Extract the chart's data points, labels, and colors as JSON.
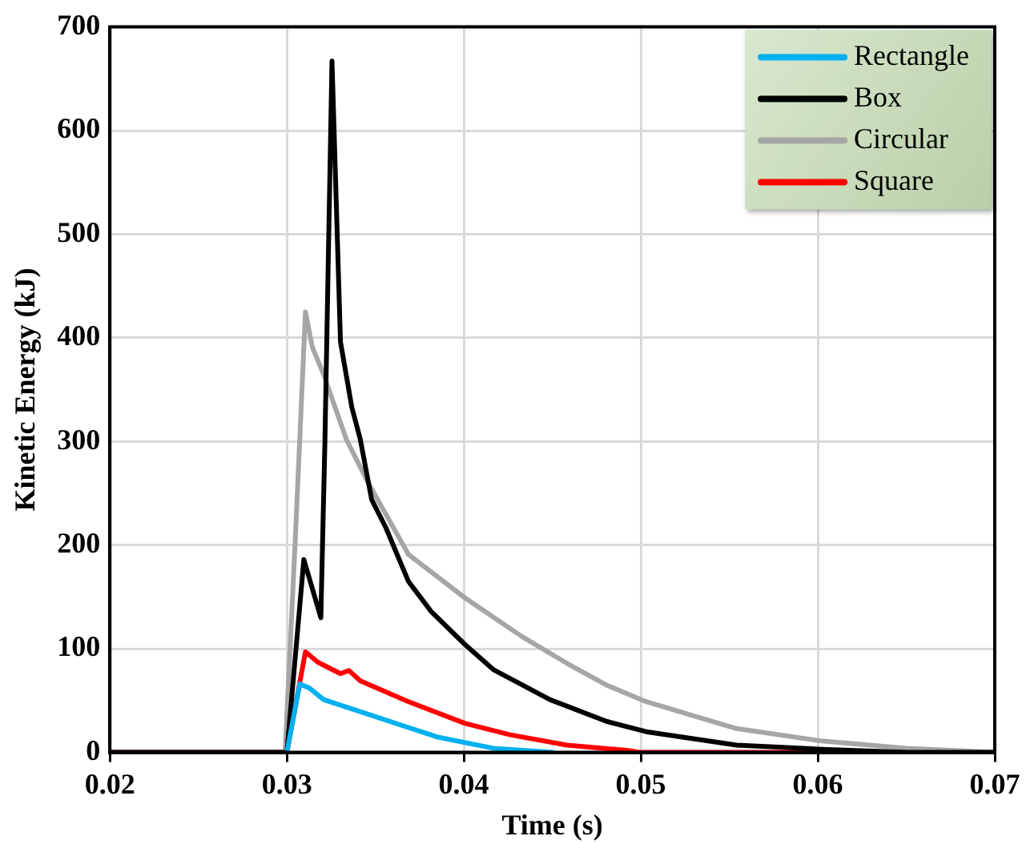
{
  "chart_data": {
    "type": "line",
    "xlabel": "Time (s)",
    "ylabel": "Kinetic Energy (kJ)",
    "xlim": [
      0.02,
      0.07
    ],
    "xticks": [
      0.02,
      0.03,
      0.04,
      0.05,
      0.06,
      0.07
    ],
    "ylim": [
      0,
      700
    ],
    "yticks": [
      0,
      100,
      200,
      300,
      400,
      500,
      600,
      700
    ],
    "grid": true,
    "legend": "top right",
    "marker": "none",
    "line_style": "solid",
    "series": [
      {
        "name": "Rectangle",
        "color": "#00b0f0",
        "x": [
          0.03,
          0.03073,
          0.03128,
          0.03207,
          0.03527,
          0.03847,
          0.04166,
          0.045
        ],
        "values": [
          0,
          66,
          62,
          51,
          33,
          15,
          4,
          0
        ]
      },
      {
        "name": "Box",
        "color": "#000000",
        "x": [
          0.02,
          0.03,
          0.03096,
          0.03192,
          0.03215,
          0.03255,
          0.03303,
          0.03367,
          0.03415,
          0.03479,
          0.03559,
          0.03687,
          0.03815,
          0.04007,
          0.04166,
          0.04486,
          0.04805,
          0.05029,
          0.0554,
          0.0602,
          0.065,
          0.07
        ],
        "values": [
          0,
          0,
          186,
          130,
          300,
          667,
          396,
          333,
          302,
          244,
          217,
          165,
          136,
          104,
          80,
          51,
          30,
          20,
          7,
          3,
          0,
          0
        ]
      },
      {
        "name": "Circular",
        "color": "#a6a6a6",
        "x": [
          0.02,
          0.0299,
          0.03048,
          0.03105,
          0.03144,
          0.03207,
          0.03336,
          0.03463,
          0.03687,
          0.04007,
          0.04326,
          0.04582,
          0.04805,
          0.05029,
          0.0554,
          0.0602,
          0.065,
          0.07
        ],
        "values": [
          0,
          0,
          207,
          425,
          391,
          365,
          302,
          259,
          191,
          149,
          112,
          86,
          65,
          49,
          23,
          11,
          4,
          0
        ]
      },
      {
        "name": "Square",
        "color": "#ff0000",
        "x": [
          0.02,
          0.03,
          0.03105,
          0.03175,
          0.03303,
          0.03351,
          0.03415,
          0.03687,
          0.04007,
          0.04262,
          0.04582,
          0.0492,
          0.05,
          0.07
        ],
        "values": [
          0,
          0,
          97,
          87,
          76,
          79,
          69,
          49,
          28,
          17,
          7,
          2,
          0,
          0
        ]
      }
    ]
  }
}
